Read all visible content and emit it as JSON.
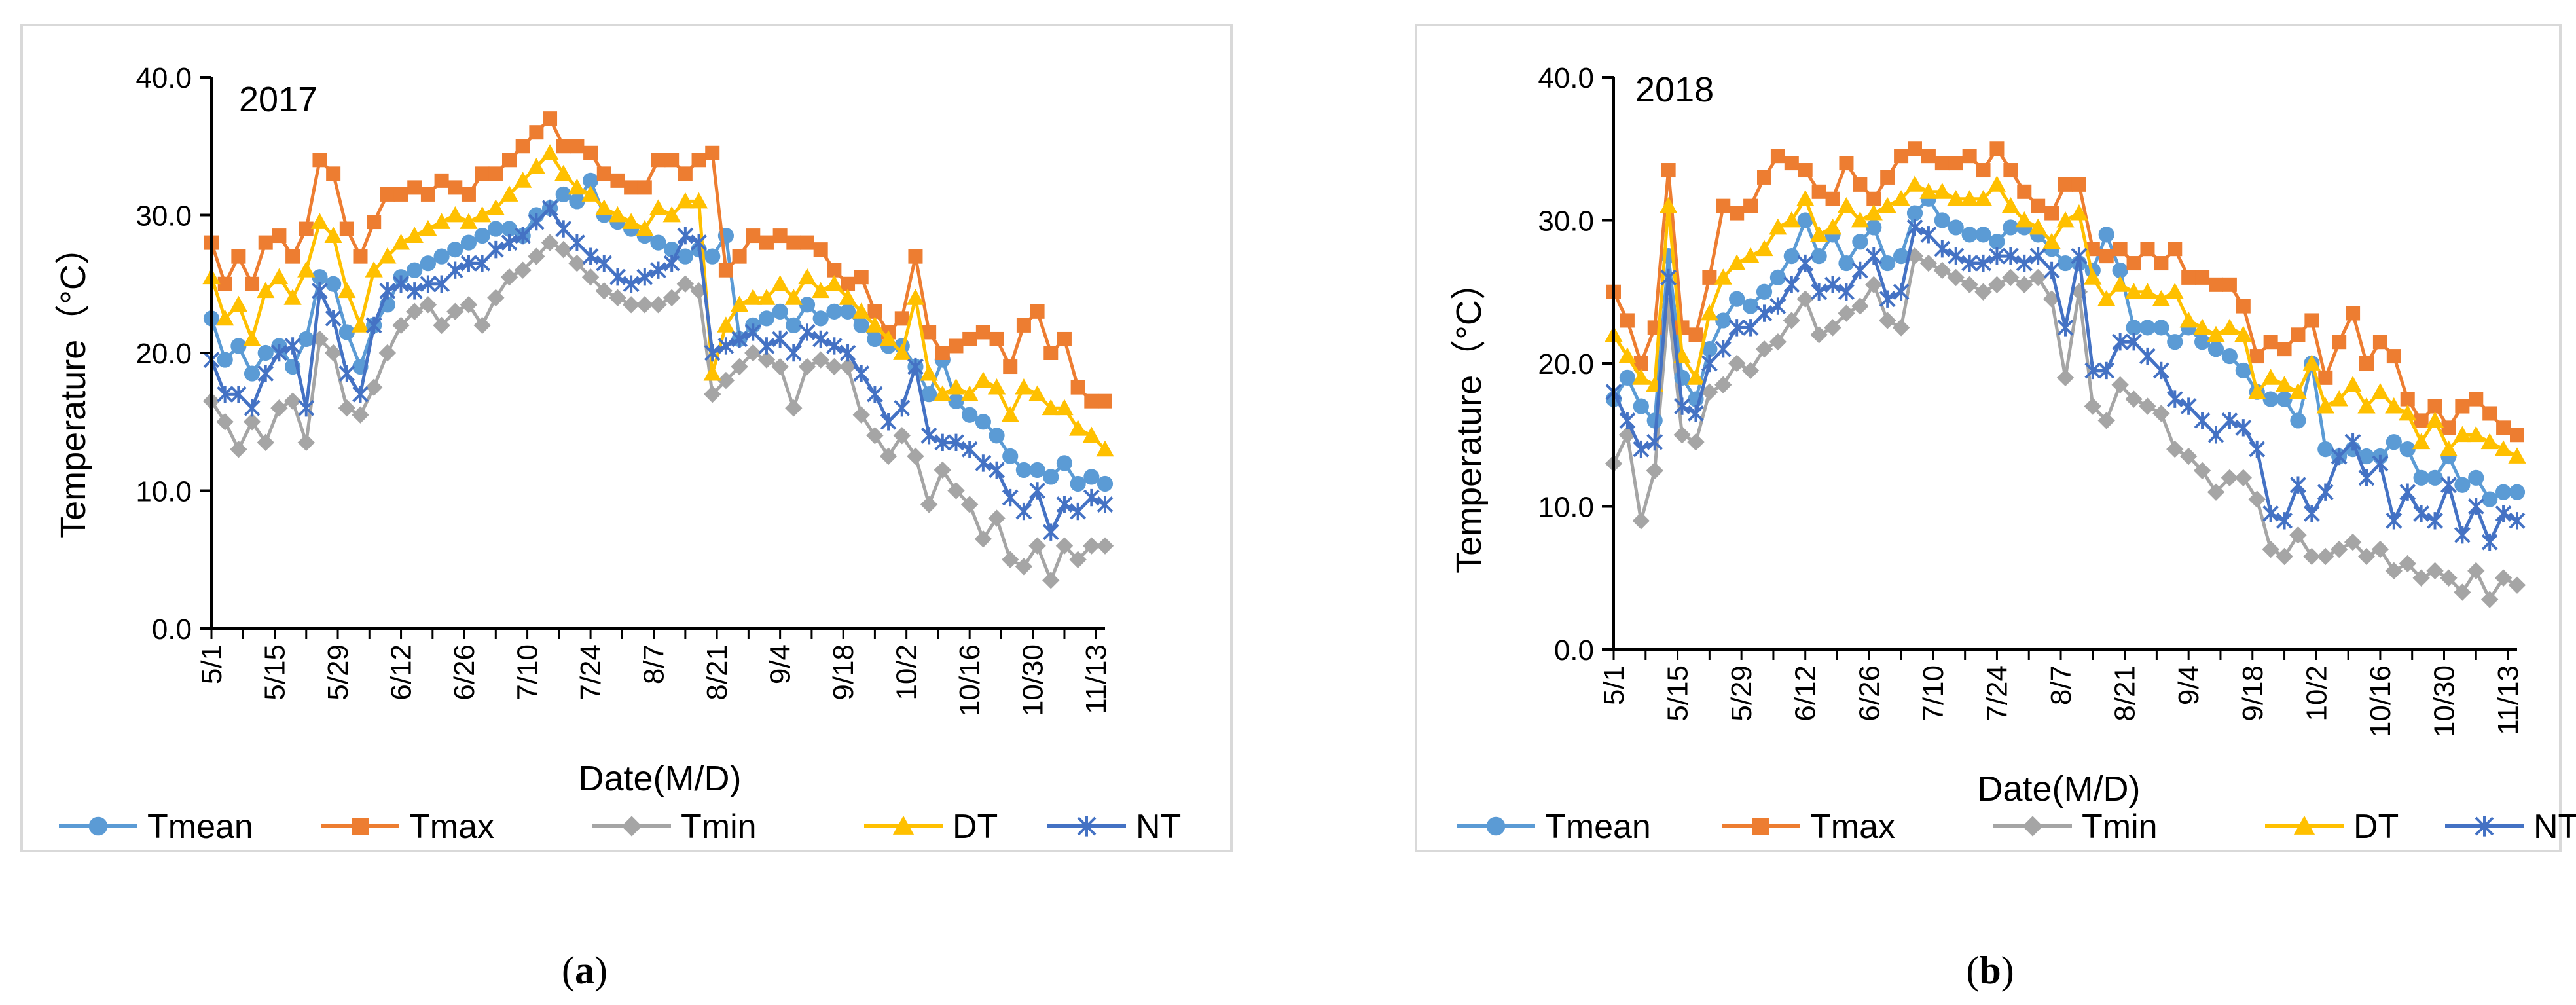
{
  "colors": {
    "Tmean": "#5B9BD5",
    "Tmax": "#ED7D31",
    "Tmin": "#A5A5A5",
    "DT": "#FFC000",
    "NT": "#4472C4",
    "frame": "#D9D9D9",
    "axis": "#000000"
  },
  "chart_data": [
    {
      "type": "line",
      "panel_label": "(a)",
      "panel_letter": "a",
      "year_label": "2017",
      "xlabel": "Date(M/D)",
      "ylabel": "Temperature（°C）",
      "ylim": [
        0,
        40
      ],
      "yticks": [
        "0.0",
        "10.0",
        "20.0",
        "30.0",
        "40.0"
      ],
      "x_tick_labels": [
        "5/1",
        "5/15",
        "5/29",
        "6/12",
        "6/26",
        "7/10",
        "7/24",
        "8/7",
        "8/21",
        "9/4",
        "9/18",
        "10/2",
        "10/16",
        "10/30",
        "11/13"
      ],
      "x_tick_day_index": [
        0,
        14,
        28,
        42,
        56,
        70,
        84,
        98,
        112,
        126,
        140,
        154,
        168,
        182,
        196
      ],
      "legend": [
        "Tmean",
        "Tmax",
        "Tmin",
        "DT",
        "NT"
      ],
      "legend_position": "bottom",
      "grid": false,
      "anchor_days": [
        0,
        3,
        6,
        9,
        12,
        15,
        18,
        21,
        24,
        27,
        30,
        33,
        36,
        39,
        42,
        45,
        48,
        51,
        54,
        57,
        60,
        63,
        66,
        69,
        72,
        75,
        78,
        81,
        84,
        87,
        90,
        93,
        96,
        99,
        102,
        105,
        108,
        111,
        114,
        117,
        120,
        123,
        126,
        129,
        132,
        135,
        138,
        141,
        144,
        147,
        150,
        153,
        156,
        159,
        162,
        165,
        168,
        171,
        174,
        177,
        180,
        183,
        186,
        189,
        192,
        195,
        198
      ],
      "series": [
        {
          "name": "Tmean",
          "values": [
            22.5,
            19.5,
            20.5,
            18.5,
            20.0,
            20.5,
            19.0,
            21.0,
            25.5,
            25.0,
            21.5,
            19.0,
            22.0,
            23.5,
            25.5,
            26.0,
            26.5,
            27.0,
            27.5,
            28.0,
            28.5,
            29.0,
            29.0,
            28.5,
            30.0,
            30.5,
            31.5,
            31.0,
            32.5,
            30.0,
            29.5,
            29.0,
            28.5,
            28.0,
            27.5,
            27.0,
            27.5,
            27.0,
            28.5,
            21.0,
            22.0,
            22.5,
            23.0,
            22.0,
            23.5,
            22.5,
            23.0,
            23.0,
            22.0,
            21.0,
            20.5,
            20.5,
            19.0,
            17.0,
            19.5,
            16.5,
            15.5,
            15.0,
            14.0,
            12.5,
            11.5,
            11.5,
            11.0,
            12.0,
            10.5,
            11.0,
            10.5
          ]
        },
        {
          "name": "Tmax",
          "values": [
            28.0,
            25.0,
            27.0,
            25.0,
            28.0,
            28.5,
            27.0,
            29.0,
            34.0,
            33.0,
            29.0,
            27.0,
            29.5,
            31.5,
            31.5,
            32.0,
            31.5,
            32.5,
            32.0,
            31.5,
            33.0,
            33.0,
            34.0,
            35.0,
            36.0,
            37.0,
            35.0,
            35.0,
            34.5,
            33.0,
            32.5,
            32.0,
            32.0,
            34.0,
            34.0,
            33.0,
            34.0,
            34.5,
            26.0,
            27.0,
            28.5,
            28.0,
            28.5,
            28.0,
            28.0,
            27.5,
            26.0,
            25.0,
            25.5,
            23.0,
            21.5,
            22.5,
            27.0,
            21.5,
            20.0,
            20.5,
            21.0,
            21.5,
            21.0,
            19.0,
            22.0,
            23.0,
            20.0,
            21.0,
            17.5,
            16.5,
            16.5
          ]
        },
        {
          "name": "Tmin",
          "values": [
            16.5,
            15.0,
            13.0,
            15.0,
            13.5,
            16.0,
            16.5,
            13.5,
            21.0,
            20.0,
            16.0,
            15.5,
            17.5,
            20.0,
            22.0,
            23.0,
            23.5,
            22.0,
            23.0,
            23.5,
            22.0,
            24.0,
            25.5,
            26.0,
            27.0,
            28.0,
            27.5,
            26.5,
            25.5,
            24.5,
            24.0,
            23.5,
            23.5,
            23.5,
            24.0,
            25.0,
            24.5,
            17.0,
            18.0,
            19.0,
            20.0,
            19.5,
            19.0,
            16.0,
            19.0,
            19.5,
            19.0,
            19.0,
            15.5,
            14.0,
            12.5,
            14.0,
            12.5,
            9.0,
            11.5,
            10.0,
            9.0,
            6.5,
            8.0,
            5.0,
            4.5,
            6.0,
            3.5,
            6.0,
            5.0,
            6.0,
            6.0
          ]
        },
        {
          "name": "DT",
          "values": [
            25.5,
            22.5,
            23.5,
            21.0,
            24.5,
            25.5,
            24.0,
            26.0,
            29.5,
            28.5,
            24.5,
            22.0,
            26.0,
            27.0,
            28.0,
            28.5,
            29.0,
            29.5,
            30.0,
            29.5,
            30.0,
            30.5,
            31.5,
            32.5,
            33.5,
            34.5,
            33.0,
            32.0,
            31.5,
            30.5,
            30.0,
            29.5,
            29.0,
            30.5,
            30.0,
            31.0,
            31.0,
            18.5,
            22.0,
            23.5,
            24.0,
            24.0,
            25.0,
            24.0,
            25.5,
            24.5,
            25.0,
            24.0,
            23.0,
            22.0,
            21.0,
            20.0,
            24.0,
            18.5,
            17.0,
            17.5,
            17.0,
            18.0,
            17.5,
            15.5,
            17.5,
            17.0,
            16.0,
            16.0,
            14.5,
            14.0,
            13.0
          ]
        },
        {
          "name": "NT",
          "values": [
            19.5,
            17.0,
            17.0,
            16.0,
            18.5,
            20.0,
            20.5,
            16.0,
            24.5,
            22.5,
            18.5,
            17.0,
            22.0,
            24.5,
            25.0,
            24.5,
            25.0,
            25.0,
            26.0,
            26.5,
            26.5,
            27.5,
            28.0,
            28.5,
            29.5,
            30.5,
            29.0,
            28.0,
            27.0,
            26.5,
            25.5,
            25.0,
            25.5,
            26.0,
            26.5,
            28.5,
            28.0,
            20.0,
            20.5,
            21.0,
            21.5,
            20.5,
            21.0,
            20.0,
            21.5,
            21.0,
            20.5,
            20.0,
            18.5,
            17.0,
            15.0,
            16.0,
            19.0,
            14.0,
            13.5,
            13.5,
            13.0,
            12.0,
            11.5,
            9.5,
            8.5,
            10.0,
            7.0,
            9.0,
            8.5,
            9.5,
            9.0
          ]
        }
      ]
    },
    {
      "type": "line",
      "panel_label": "(b)",
      "panel_letter": "b",
      "year_label": "2018",
      "xlabel": "Date(M/D)",
      "ylabel": "Temperature（°C）",
      "ylim": [
        0,
        40
      ],
      "yticks": [
        "0.0",
        "10.0",
        "20.0",
        "30.0",
        "40.0"
      ],
      "x_tick_labels": [
        "5/1",
        "5/15",
        "5/29",
        "6/12",
        "6/26",
        "7/10",
        "7/24",
        "8/7",
        "8/21",
        "9/4",
        "9/18",
        "10/2",
        "10/16",
        "10/30",
        "11/13"
      ],
      "x_tick_day_index": [
        0,
        14,
        28,
        42,
        56,
        70,
        84,
        98,
        112,
        126,
        140,
        154,
        168,
        182,
        196
      ],
      "legend": [
        "Tmean",
        "Tmax",
        "Tmin",
        "DT",
        "NT"
      ],
      "legend_position": "bottom",
      "grid": false,
      "anchor_days": [
        0,
        3,
        6,
        9,
        12,
        15,
        18,
        21,
        24,
        27,
        30,
        33,
        36,
        39,
        42,
        45,
        48,
        51,
        54,
        57,
        60,
        63,
        66,
        69,
        72,
        75,
        78,
        81,
        84,
        87,
        90,
        93,
        96,
        99,
        102,
        105,
        108,
        111,
        114,
        117,
        120,
        123,
        126,
        129,
        132,
        135,
        138,
        141,
        144,
        147,
        150,
        153,
        156,
        159,
        162,
        165,
        168,
        171,
        174,
        177,
        180,
        183,
        186,
        189,
        192,
        195,
        198
      ],
      "series": [
        {
          "name": "Tmean",
          "values": [
            17.5,
            19.0,
            17.0,
            16.0,
            27.5,
            19.0,
            17.5,
            21.0,
            23.0,
            24.5,
            24.0,
            25.0,
            26.0,
            27.5,
            30.0,
            27.5,
            29.0,
            27.0,
            28.5,
            29.5,
            27.0,
            27.5,
            30.5,
            31.5,
            30.0,
            29.5,
            29.0,
            29.0,
            28.5,
            29.5,
            29.5,
            29.0,
            28.0,
            27.0,
            27.0,
            26.5,
            29.0,
            26.5,
            22.5,
            22.5,
            22.5,
            21.5,
            22.5,
            21.5,
            21.0,
            20.5,
            19.5,
            18.0,
            17.5,
            17.5,
            16.0,
            20.0,
            14.0,
            13.5,
            14.0,
            13.5,
            13.5,
            14.5,
            14.0,
            12.0,
            12.0,
            13.5,
            11.5,
            12.0,
            10.5,
            11.0,
            11.0
          ]
        },
        {
          "name": "Tmax",
          "values": [
            25.0,
            23.0,
            20.0,
            22.5,
            33.5,
            22.5,
            22.0,
            26.0,
            31.0,
            30.5,
            31.0,
            33.0,
            34.5,
            34.0,
            33.5,
            32.0,
            31.5,
            34.0,
            32.5,
            31.5,
            33.0,
            34.5,
            35.0,
            34.5,
            34.0,
            34.0,
            34.5,
            33.5,
            35.0,
            33.5,
            32.0,
            31.0,
            30.5,
            32.5,
            32.5,
            28.0,
            27.5,
            28.0,
            27.0,
            28.0,
            27.0,
            28.0,
            26.0,
            26.0,
            25.5,
            25.5,
            24.0,
            20.5,
            21.5,
            21.0,
            22.0,
            23.0,
            19.0,
            21.5,
            23.5,
            20.0,
            21.5,
            20.5,
            17.5,
            16.0,
            17.0,
            15.5,
            17.0,
            17.5,
            16.5,
            15.5,
            15.0
          ]
        },
        {
          "name": "Tmin",
          "values": [
            13.0,
            15.0,
            9.0,
            12.5,
            24.0,
            15.0,
            14.5,
            18.0,
            18.5,
            20.0,
            19.5,
            21.0,
            21.5,
            23.0,
            24.5,
            22.0,
            22.5,
            23.5,
            24.0,
            25.5,
            23.0,
            22.5,
            27.5,
            27.0,
            26.5,
            26.0,
            25.5,
            25.0,
            25.5,
            26.0,
            25.5,
            26.0,
            24.5,
            19.0,
            25.0,
            17.0,
            16.0,
            18.5,
            17.5,
            17.0,
            16.5,
            14.0,
            13.5,
            12.5,
            11.0,
            12.0,
            12.0,
            10.5,
            7.0,
            6.5,
            8.0,
            6.5,
            6.5,
            7.0,
            7.5,
            6.5,
            7.0,
            5.5,
            6.0,
            5.0,
            5.5,
            5.0,
            4.0,
            5.5,
            3.5,
            5.0,
            4.5
          ]
        },
        {
          "name": "DT",
          "values": [
            22.0,
            20.5,
            19.0,
            18.5,
            31.0,
            20.5,
            19.0,
            23.5,
            26.0,
            27.0,
            27.5,
            28.0,
            29.5,
            30.0,
            31.5,
            29.0,
            29.5,
            31.0,
            30.0,
            30.5,
            31.0,
            31.5,
            32.5,
            32.0,
            32.0,
            31.5,
            31.5,
            31.5,
            32.5,
            31.0,
            30.0,
            29.5,
            28.5,
            30.0,
            30.5,
            26.0,
            24.5,
            25.5,
            25.0,
            25.0,
            24.5,
            25.0,
            23.0,
            22.5,
            22.0,
            22.5,
            22.0,
            18.0,
            19.0,
            18.5,
            18.0,
            20.0,
            17.0,
            17.5,
            18.5,
            17.0,
            18.0,
            17.0,
            16.5,
            14.5,
            16.0,
            14.0,
            15.0,
            15.0,
            14.5,
            14.0,
            13.5
          ]
        },
        {
          "name": "NT",
          "values": [
            18.0,
            16.0,
            14.0,
            14.5,
            26.0,
            17.0,
            16.5,
            20.0,
            21.0,
            22.5,
            22.5,
            23.5,
            24.0,
            25.5,
            27.0,
            25.0,
            25.5,
            25.0,
            26.5,
            27.5,
            24.5,
            25.0,
            29.5,
            29.0,
            28.0,
            27.5,
            27.0,
            27.0,
            27.5,
            27.5,
            27.0,
            27.5,
            26.5,
            22.5,
            27.5,
            19.5,
            19.5,
            21.5,
            21.5,
            20.5,
            19.5,
            17.5,
            17.0,
            16.0,
            15.0,
            16.0,
            15.5,
            14.0,
            9.5,
            9.0,
            11.5,
            9.5,
            11.0,
            13.5,
            14.5,
            12.0,
            13.0,
            9.0,
            11.0,
            9.5,
            9.0,
            11.5,
            8.0,
            10.0,
            7.5,
            9.5,
            9.0
          ]
        }
      ]
    }
  ]
}
